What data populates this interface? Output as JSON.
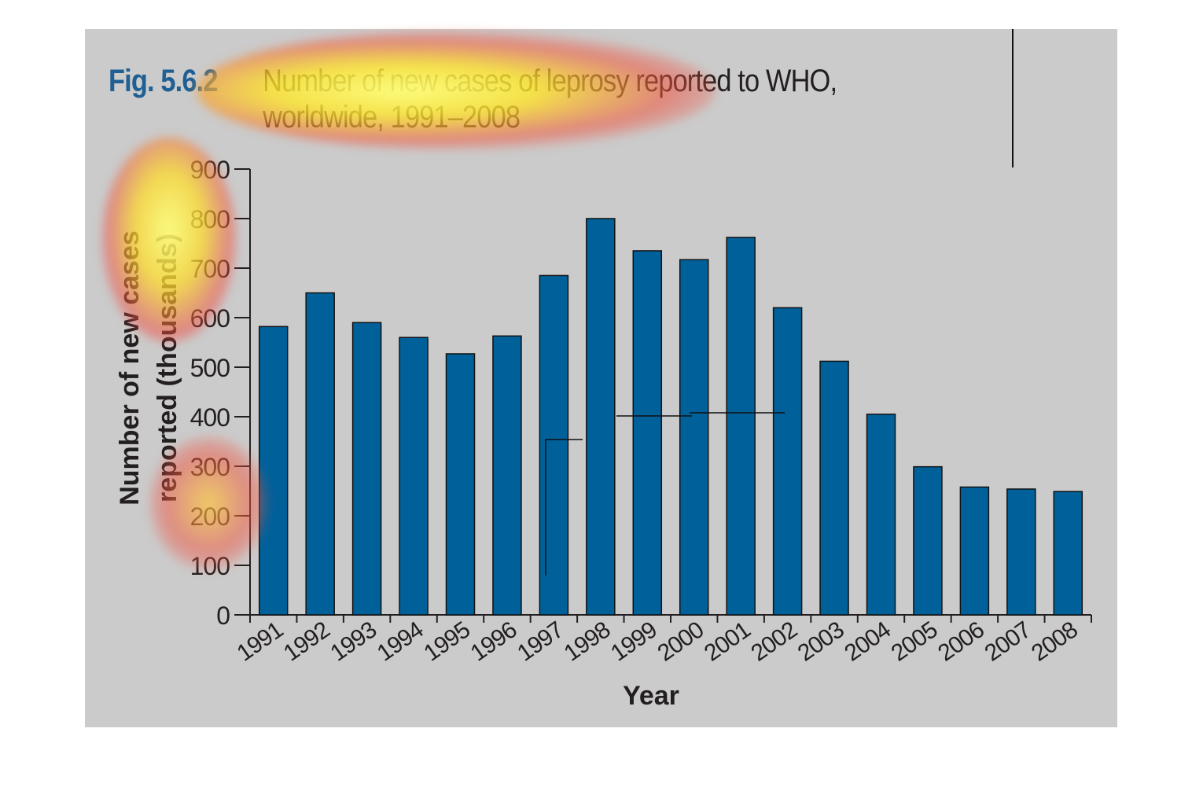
{
  "figure": {
    "label": "Fig. 5.6.2",
    "title": "Number of new cases of leprosy reported to WHO, worldwide, 1991–2008"
  },
  "colors": {
    "bar": "#00619a",
    "background": "#cbcbcb",
    "label_blue": "#1f5f94",
    "text": "#231f20"
  },
  "chart_data": {
    "type": "bar",
    "title": "Number of new cases of leprosy reported to WHO, worldwide, 1991–2008",
    "xlabel": "Year",
    "ylabel": "Number of new cases reported (thousands)",
    "ylim": [
      0,
      900
    ],
    "yticks": [
      0,
      100,
      200,
      300,
      400,
      500,
      600,
      700,
      800,
      900
    ],
    "categories": [
      "1991",
      "1992",
      "1993",
      "1994",
      "1995",
      "1996",
      "1997",
      "1998",
      "1999",
      "2000",
      "2001",
      "2002",
      "2003",
      "2004",
      "2005",
      "2006",
      "2007",
      "2008"
    ],
    "values": [
      582,
      650,
      590,
      560,
      527,
      563,
      685,
      800,
      735,
      717,
      762,
      620,
      512,
      405,
      299,
      258,
      254,
      249
    ],
    "grid": false,
    "legend": "none"
  }
}
